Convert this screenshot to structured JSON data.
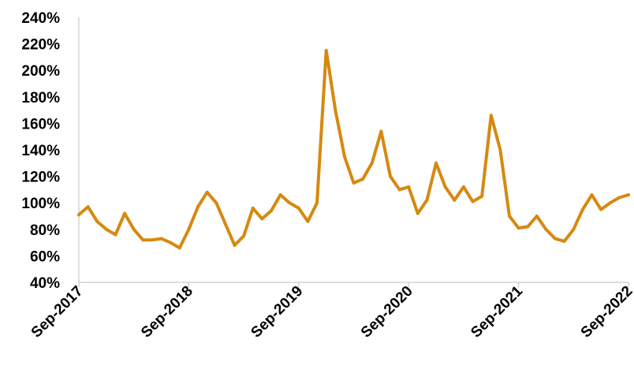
{
  "chart_data": {
    "type": "line",
    "title": "",
    "xlabel": "",
    "ylabel": "",
    "y_ticks": [
      "240%",
      "220%",
      "200%",
      "180%",
      "160%",
      "140%",
      "120%",
      "100%",
      "80%",
      "60%",
      "40%"
    ],
    "x_ticks": [
      "Sep-2017",
      "Sep-2018",
      "Sep-2019",
      "Sep-2020",
      "Sep-2021",
      "Sep-2022"
    ],
    "ylim": [
      40,
      240
    ],
    "xlim": [
      "2017-09",
      "2022-09"
    ],
    "grid": false,
    "legend": "none",
    "line_color": "#D68910",
    "series": [
      {
        "x": [
          "2017-09",
          "2017-10",
          "2017-11",
          "2017-12",
          "2018-01",
          "2018-02",
          "2018-03",
          "2018-04",
          "2018-05",
          "2018-06",
          "2018-07",
          "2018-08",
          "2018-09",
          "2018-10",
          "2018-11",
          "2018-12",
          "2019-01",
          "2019-02",
          "2019-03",
          "2019-04",
          "2019-05",
          "2019-06",
          "2019-07",
          "2019-08",
          "2019-09",
          "2019-10",
          "2019-11",
          "2019-12",
          "2020-01",
          "2020-02",
          "2020-03",
          "2020-04",
          "2020-05",
          "2020-06",
          "2020-07",
          "2020-08",
          "2020-09",
          "2020-10",
          "2020-11",
          "2020-12",
          "2021-01",
          "2021-02",
          "2021-03",
          "2021-04",
          "2021-05",
          "2021-06",
          "2021-07",
          "2021-08",
          "2021-09",
          "2021-10",
          "2021-11",
          "2021-12",
          "2022-01",
          "2022-02",
          "2022-03",
          "2022-04",
          "2022-05",
          "2022-06",
          "2022-07",
          "2022-08",
          "2022-09"
        ],
        "values": [
          91,
          97,
          86,
          80,
          76,
          92,
          80,
          72,
          72,
          73,
          70,
          66,
          80,
          97,
          108,
          100,
          84,
          68,
          75,
          96,
          88,
          94,
          106,
          100,
          96,
          86,
          100,
          215,
          170,
          135,
          115,
          118,
          130,
          154,
          120,
          110,
          112,
          92,
          102,
          130,
          112,
          102,
          112,
          101,
          105,
          166,
          140,
          90,
          81,
          82,
          90,
          80,
          73,
          71,
          80,
          95,
          106,
          95,
          100,
          104,
          106
        ]
      }
    ]
  }
}
